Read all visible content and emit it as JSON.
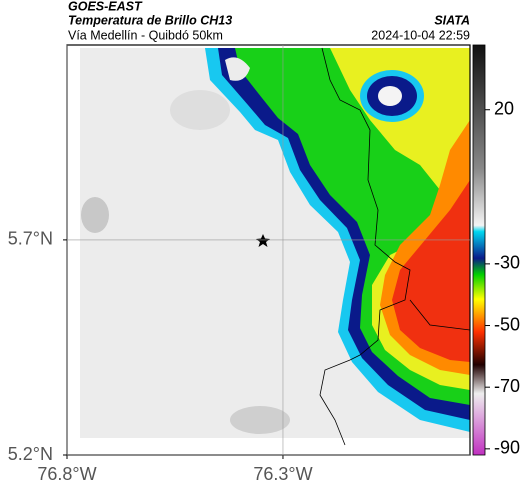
{
  "header": {
    "title": "GOES-EAST",
    "subtitle": "Temperatura de Brillo CH13",
    "source": "SIATA",
    "region": "Vía Medellín - Quibdó 50km",
    "timestamp": "2024-10-04 22:59"
  },
  "map": {
    "xlim": [
      -76.8,
      -75.867
    ],
    "ylim": [
      5.2,
      6.153
    ],
    "xticks": [
      {
        "value": -76.8,
        "label": "76.8°W"
      },
      {
        "value": -76.3,
        "label": "76.3°W"
      }
    ],
    "yticks": [
      {
        "value": 5.2,
        "label": "5.2°N"
      },
      {
        "value": 5.7,
        "label": "5.7°N"
      }
    ],
    "grid": true
  },
  "colorbar": {
    "lim": [
      -92,
      41
    ],
    "ticks": [
      20,
      -30,
      -50,
      -70,
      -90
    ]
  }
}
